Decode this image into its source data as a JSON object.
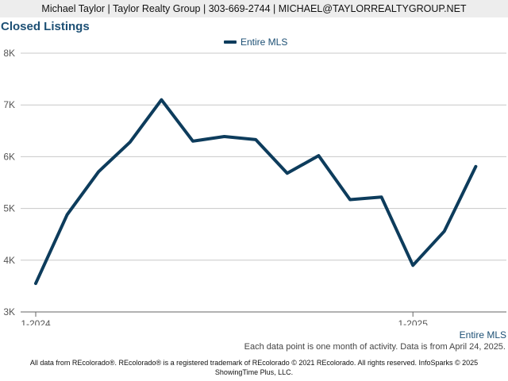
{
  "header": {
    "text": "Michael Taylor | Taylor Realty Group | 303-669-2744 | MICHAEL@TAYLORREALTYGROUP.NET"
  },
  "chart_data": {
    "type": "line",
    "title": "Closed Listings",
    "xlabel": "",
    "ylabel": "",
    "x": [
      "2024-01",
      "2024-02",
      "2024-03",
      "2024-04",
      "2024-05",
      "2024-06",
      "2024-07",
      "2024-08",
      "2024-09",
      "2024-10",
      "2024-11",
      "2024-12",
      "2025-01",
      "2025-02",
      "2025-03"
    ],
    "series": [
      {
        "name": "Entire MLS",
        "color": "#0d3c5c",
        "values": [
          3550,
          4880,
          5710,
          6280,
          7100,
          6300,
          6390,
          6330,
          5680,
          6020,
          5170,
          5220,
          3900,
          4560,
          5810
        ]
      }
    ],
    "ylim": [
      3000,
      8000
    ],
    "yticks": [
      3000,
      4000,
      5000,
      6000,
      7000,
      8000
    ],
    "ytick_labels": [
      "3K",
      "4K",
      "5K",
      "6K",
      "7K",
      "8K"
    ],
    "xtick_labels": [
      {
        "index": 0,
        "label": "1-2024"
      },
      {
        "index": 12,
        "label": "1-2025"
      }
    ],
    "legend": "top-center",
    "grid": true
  },
  "footer": {
    "series_label": "Entire MLS",
    "note": "Each data point is one month of activity. Data is from April 24, 2025.",
    "copyright_line1": "All data from REcolorado®. REcolorado® is a registered trademark of REcolorado © 2021 REcolorado. All rights reserved. InfoSparks © 2025",
    "copyright_line2": "ShowingTime Plus, LLC."
  }
}
